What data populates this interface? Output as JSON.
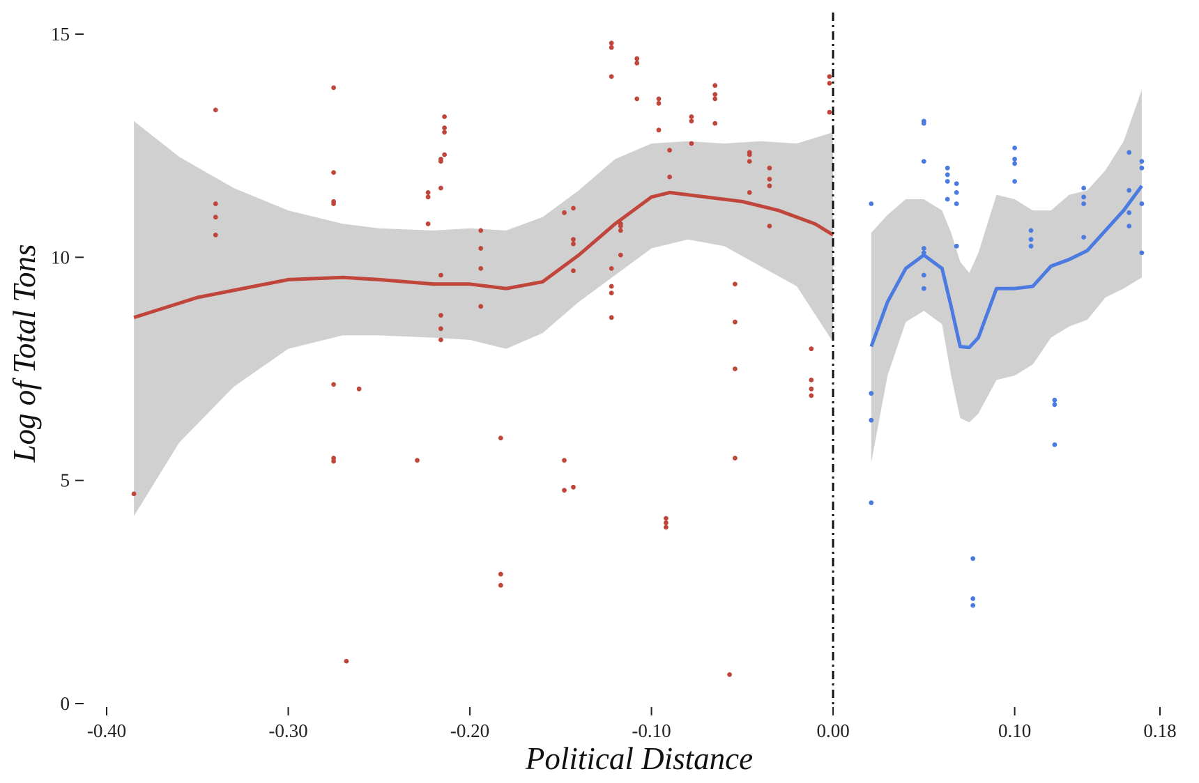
{
  "chart_data": {
    "type": "scatter",
    "title": "",
    "xlabel": "Political Distance",
    "ylabel": "Log of Total Tons",
    "xlim": [
      -0.4,
      0.18
    ],
    "ylim": [
      0,
      15
    ],
    "x_ticks": [
      {
        "value": -0.4,
        "label": "-0.40"
      },
      {
        "value": -0.3,
        "label": "-0.30"
      },
      {
        "value": -0.2,
        "label": "-0.20"
      },
      {
        "value": -0.1,
        "label": "-0.10"
      },
      {
        "value": 0.0,
        "label": "0.00"
      },
      {
        "value": 0.1,
        "label": "0.10"
      },
      {
        "value": 0.18,
        "label": "0.18"
      }
    ],
    "y_ticks": [
      {
        "value": 0,
        "label": "0"
      },
      {
        "value": 5,
        "label": "5"
      },
      {
        "value": 10,
        "label": "10"
      },
      {
        "value": 15,
        "label": "15"
      }
    ],
    "grid": false,
    "cutoff": {
      "x": 0.0,
      "style": "dash-dot",
      "color": "#111111"
    },
    "series": [
      {
        "color": "#c0453a",
        "points": [
          [
            -0.385,
            4.7
          ],
          [
            -0.34,
            13.3
          ],
          [
            -0.34,
            11.2
          ],
          [
            -0.34,
            10.9
          ],
          [
            -0.34,
            10.5
          ],
          [
            -0.275,
            13.8
          ],
          [
            -0.275,
            11.9
          ],
          [
            -0.275,
            11.25
          ],
          [
            -0.275,
            11.2
          ],
          [
            -0.275,
            7.15
          ],
          [
            -0.275,
            5.5
          ],
          [
            -0.275,
            5.43
          ],
          [
            -0.268,
            0.95
          ],
          [
            -0.261,
            7.05
          ],
          [
            -0.229,
            5.45
          ],
          [
            -0.223,
            11.45
          ],
          [
            -0.223,
            11.35
          ],
          [
            -0.223,
            10.75
          ],
          [
            -0.216,
            12.2
          ],
          [
            -0.216,
            12.15
          ],
          [
            -0.216,
            11.55
          ],
          [
            -0.216,
            9.6
          ],
          [
            -0.216,
            8.7
          ],
          [
            -0.216,
            8.4
          ],
          [
            -0.216,
            8.15
          ],
          [
            -0.214,
            13.15
          ],
          [
            -0.214,
            12.9
          ],
          [
            -0.214,
            12.8
          ],
          [
            -0.214,
            12.3
          ],
          [
            -0.194,
            10.6
          ],
          [
            -0.194,
            10.2
          ],
          [
            -0.194,
            9.75
          ],
          [
            -0.194,
            8.9
          ],
          [
            -0.183,
            5.95
          ],
          [
            -0.183,
            2.9
          ],
          [
            -0.183,
            2.65
          ],
          [
            -0.148,
            11.0
          ],
          [
            -0.148,
            5.45
          ],
          [
            -0.148,
            4.78
          ],
          [
            -0.143,
            11.1
          ],
          [
            -0.143,
            10.4
          ],
          [
            -0.143,
            10.3
          ],
          [
            -0.143,
            9.7
          ],
          [
            -0.143,
            4.85
          ],
          [
            -0.122,
            14.8
          ],
          [
            -0.122,
            14.7
          ],
          [
            -0.122,
            14.05
          ],
          [
            -0.122,
            9.75
          ],
          [
            -0.122,
            9.35
          ],
          [
            -0.122,
            9.2
          ],
          [
            -0.122,
            8.65
          ],
          [
            -0.117,
            10.75
          ],
          [
            -0.117,
            10.7
          ],
          [
            -0.117,
            10.6
          ],
          [
            -0.117,
            10.05
          ],
          [
            -0.108,
            14.45
          ],
          [
            -0.108,
            14.35
          ],
          [
            -0.108,
            13.55
          ],
          [
            -0.096,
            13.55
          ],
          [
            -0.096,
            13.45
          ],
          [
            -0.096,
            12.85
          ],
          [
            -0.092,
            4.15
          ],
          [
            -0.092,
            4.05
          ],
          [
            -0.092,
            3.95
          ],
          [
            -0.09,
            12.4
          ],
          [
            -0.09,
            11.8
          ],
          [
            -0.078,
            13.15
          ],
          [
            -0.078,
            13.05
          ],
          [
            -0.078,
            12.55
          ],
          [
            -0.065,
            13.85
          ],
          [
            -0.065,
            13.65
          ],
          [
            -0.065,
            13.55
          ],
          [
            -0.065,
            13.0
          ],
          [
            -0.057,
            0.65
          ],
          [
            -0.054,
            9.4
          ],
          [
            -0.054,
            8.55
          ],
          [
            -0.054,
            7.5
          ],
          [
            -0.054,
            5.5
          ],
          [
            -0.046,
            12.35
          ],
          [
            -0.046,
            12.3
          ],
          [
            -0.046,
            12.15
          ],
          [
            -0.046,
            11.45
          ],
          [
            -0.035,
            12.0
          ],
          [
            -0.035,
            11.75
          ],
          [
            -0.035,
            11.6
          ],
          [
            -0.035,
            10.7
          ],
          [
            -0.012,
            7.95
          ],
          [
            -0.012,
            7.25
          ],
          [
            -0.012,
            7.05
          ],
          [
            -0.012,
            6.9
          ],
          [
            -0.002,
            14.05
          ],
          [
            -0.002,
            13.9
          ],
          [
            -0.002,
            13.25
          ]
        ]
      },
      {
        "color": "#4b7be0",
        "points": [
          [
            0.021,
            11.2
          ],
          [
            0.021,
            6.95
          ],
          [
            0.021,
            6.35
          ],
          [
            0.021,
            4.5
          ],
          [
            0.05,
            13.05
          ],
          [
            0.05,
            13.0
          ],
          [
            0.05,
            12.15
          ],
          [
            0.05,
            10.2
          ],
          [
            0.05,
            10.1
          ],
          [
            0.05,
            9.6
          ],
          [
            0.05,
            9.3
          ],
          [
            0.063,
            12.0
          ],
          [
            0.063,
            11.85
          ],
          [
            0.063,
            11.7
          ],
          [
            0.063,
            11.3
          ],
          [
            0.068,
            11.65
          ],
          [
            0.068,
            11.45
          ],
          [
            0.068,
            11.2
          ],
          [
            0.068,
            10.25
          ],
          [
            0.077,
            3.25
          ],
          [
            0.077,
            2.35
          ],
          [
            0.077,
            2.2
          ],
          [
            0.1,
            12.45
          ],
          [
            0.1,
            12.2
          ],
          [
            0.1,
            12.1
          ],
          [
            0.1,
            11.7
          ],
          [
            0.109,
            10.6
          ],
          [
            0.109,
            10.4
          ],
          [
            0.109,
            10.25
          ],
          [
            0.122,
            6.8
          ],
          [
            0.122,
            6.7
          ],
          [
            0.122,
            5.8
          ],
          [
            0.138,
            11.55
          ],
          [
            0.138,
            11.35
          ],
          [
            0.138,
            11.2
          ],
          [
            0.138,
            10.45
          ],
          [
            0.163,
            12.35
          ],
          [
            0.163,
            11.5
          ],
          [
            0.163,
            11.0
          ],
          [
            0.163,
            10.7
          ],
          [
            0.17,
            12.15
          ],
          [
            0.17,
            12.0
          ],
          [
            0.17,
            11.2
          ],
          [
            0.17,
            10.1
          ]
        ],
        "fit": [
          [
            0.021,
            8.0
          ],
          [
            0.03,
            9.0
          ],
          [
            0.04,
            9.75
          ],
          [
            0.05,
            10.05
          ],
          [
            0.06,
            9.75
          ],
          [
            0.065,
            8.9
          ],
          [
            0.07,
            8.0
          ],
          [
            0.075,
            7.98
          ],
          [
            0.08,
            8.2
          ],
          [
            0.09,
            9.3
          ],
          [
            0.1,
            9.3
          ],
          [
            0.11,
            9.35
          ],
          [
            0.12,
            9.8
          ],
          [
            0.13,
            9.95
          ],
          [
            0.14,
            10.15
          ],
          [
            0.15,
            10.6
          ],
          [
            0.16,
            11.05
          ],
          [
            0.17,
            11.6
          ]
        ],
        "ci_upper": [
          [
            0.021,
            10.55
          ],
          [
            0.03,
            10.95
          ],
          [
            0.04,
            11.3
          ],
          [
            0.05,
            11.3
          ],
          [
            0.06,
            11.05
          ],
          [
            0.065,
            10.55
          ],
          [
            0.07,
            9.9
          ],
          [
            0.075,
            9.65
          ],
          [
            0.08,
            10.1
          ],
          [
            0.09,
            11.4
          ],
          [
            0.1,
            11.3
          ],
          [
            0.11,
            11.05
          ],
          [
            0.12,
            11.05
          ],
          [
            0.13,
            11.4
          ],
          [
            0.14,
            11.5
          ],
          [
            0.15,
            11.95
          ],
          [
            0.16,
            12.6
          ],
          [
            0.17,
            13.75
          ]
        ],
        "ci_lower": [
          [
            0.021,
            5.4
          ],
          [
            0.03,
            7.35
          ],
          [
            0.04,
            8.55
          ],
          [
            0.05,
            8.8
          ],
          [
            0.06,
            8.5
          ],
          [
            0.065,
            7.35
          ],
          [
            0.07,
            6.4
          ],
          [
            0.075,
            6.3
          ],
          [
            0.08,
            6.5
          ],
          [
            0.09,
            7.25
          ],
          [
            0.1,
            7.35
          ],
          [
            0.11,
            7.6
          ],
          [
            0.12,
            8.2
          ],
          [
            0.13,
            8.45
          ],
          [
            0.14,
            8.6
          ],
          [
            0.15,
            9.1
          ],
          [
            0.16,
            9.3
          ],
          [
            0.17,
            9.55
          ]
        ]
      }
    ],
    "fits": [
      {
        "series_index": 0,
        "line": [
          [
            -0.385,
            8.65
          ],
          [
            -0.35,
            9.1
          ],
          [
            -0.3,
            9.5
          ],
          [
            -0.27,
            9.55
          ],
          [
            -0.25,
            9.5
          ],
          [
            -0.22,
            9.4
          ],
          [
            -0.2,
            9.4
          ],
          [
            -0.18,
            9.3
          ],
          [
            -0.16,
            9.45
          ],
          [
            -0.14,
            10.05
          ],
          [
            -0.12,
            10.75
          ],
          [
            -0.1,
            11.35
          ],
          [
            -0.09,
            11.45
          ],
          [
            -0.07,
            11.35
          ],
          [
            -0.05,
            11.25
          ],
          [
            -0.03,
            11.05
          ],
          [
            -0.01,
            10.75
          ],
          [
            0.0,
            10.5
          ]
        ],
        "ci_upper": [
          [
            -0.385,
            13.05
          ],
          [
            -0.36,
            12.25
          ],
          [
            -0.33,
            11.55
          ],
          [
            -0.3,
            11.05
          ],
          [
            -0.27,
            10.75
          ],
          [
            -0.25,
            10.65
          ],
          [
            -0.22,
            10.6
          ],
          [
            -0.2,
            10.65
          ],
          [
            -0.18,
            10.6
          ],
          [
            -0.16,
            10.9
          ],
          [
            -0.14,
            11.5
          ],
          [
            -0.12,
            12.2
          ],
          [
            -0.1,
            12.55
          ],
          [
            -0.08,
            12.6
          ],
          [
            -0.06,
            12.55
          ],
          [
            -0.04,
            12.6
          ],
          [
            -0.02,
            12.55
          ],
          [
            0.0,
            12.8
          ]
        ],
        "ci_lower": [
          [
            -0.385,
            4.2
          ],
          [
            -0.36,
            5.85
          ],
          [
            -0.33,
            7.1
          ],
          [
            -0.3,
            7.95
          ],
          [
            -0.27,
            8.25
          ],
          [
            -0.25,
            8.25
          ],
          [
            -0.22,
            8.2
          ],
          [
            -0.2,
            8.15
          ],
          [
            -0.18,
            7.95
          ],
          [
            -0.16,
            8.3
          ],
          [
            -0.14,
            9.0
          ],
          [
            -0.12,
            9.6
          ],
          [
            -0.1,
            10.2
          ],
          [
            -0.08,
            10.4
          ],
          [
            -0.06,
            10.25
          ],
          [
            -0.04,
            9.8
          ],
          [
            -0.02,
            9.35
          ],
          [
            0.0,
            8.1
          ]
        ]
      }
    ]
  }
}
